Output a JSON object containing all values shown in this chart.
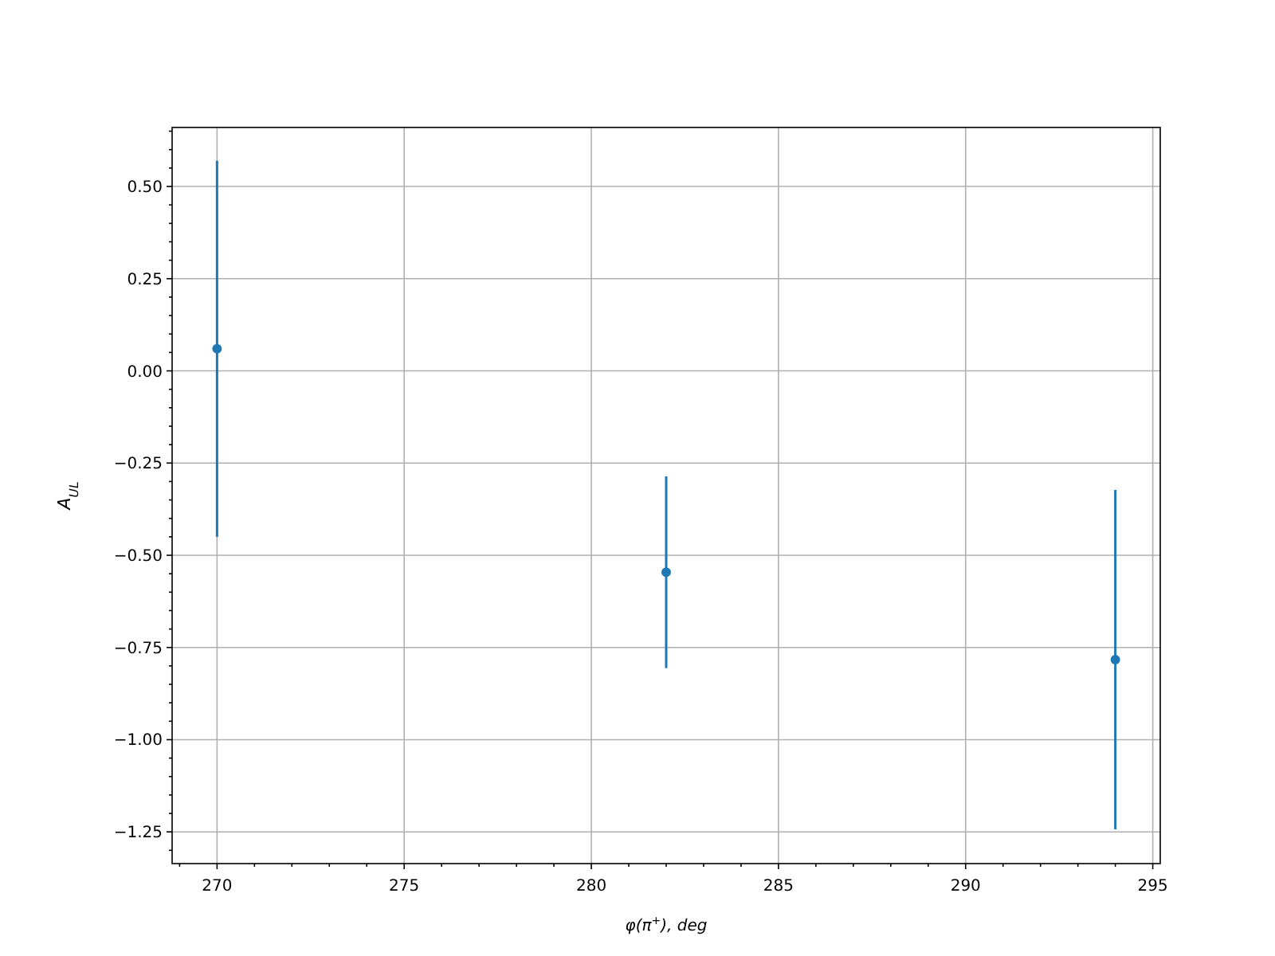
{
  "chart_data": {
    "type": "scatter",
    "xlabel": "φ(π$^{+}$), deg",
    "ylabel": "A$_{UL}$",
    "x": [
      270,
      282,
      294
    ],
    "series": [
      {
        "color": "#1f77b4",
        "values": [
          0.06,
          -0.546,
          -0.783
        ],
        "errors": [
          0.51,
          0.26,
          0.46
        ]
      }
    ],
    "xlim": [
      268.8,
      295.2
    ],
    "ylim": [
      -1.336,
      0.66
    ],
    "xticks": [
      {
        "value": 269,
        "label": null
      },
      270,
      {
        "value": 271,
        "label": null
      },
      {
        "value": 272,
        "label": null
      },
      {
        "value": 273,
        "label": null
      },
      {
        "value": 274,
        "label": null
      },
      275,
      {
        "value": 276,
        "label": null
      },
      {
        "value": 277,
        "label": null
      },
      {
        "value": 278,
        "label": null
      },
      {
        "value": 279,
        "label": null
      },
      280,
      {
        "value": 281,
        "label": null
      },
      {
        "value": 282,
        "label": null
      },
      {
        "value": 283,
        "label": null
      },
      {
        "value": 284,
        "label": null
      },
      285,
      {
        "value": 286,
        "label": null
      },
      {
        "value": 287,
        "label": null
      },
      {
        "value": 288,
        "label": null
      },
      {
        "value": 289,
        "label": null
      },
      290,
      {
        "value": 291,
        "label": null
      },
      {
        "value": 292,
        "label": null
      },
      {
        "value": 293,
        "label": null
      },
      {
        "value": 294,
        "label": null
      },
      295
    ],
    "yticks": [
      {
        "value": -1.3,
        "label": null
      },
      {
        "value": -1.25,
        "label": "−1.25"
      },
      {
        "value": -1.2,
        "label": null
      },
      {
        "value": -1.15,
        "label": null
      },
      {
        "value": -1.1,
        "label": null
      },
      {
        "value": -1.05,
        "label": null
      },
      {
        "value": -1,
        "label": "−1.00"
      },
      {
        "value": -0.95,
        "label": null
      },
      {
        "value": -0.9,
        "label": null
      },
      {
        "value": -0.85,
        "label": null
      },
      {
        "value": -0.8,
        "label": null
      },
      {
        "value": -0.75,
        "label": "−0.75"
      },
      {
        "value": -0.7,
        "label": null
      },
      {
        "value": -0.65,
        "label": null
      },
      {
        "value": -0.6,
        "label": null
      },
      {
        "value": -0.55,
        "label": null
      },
      {
        "value": -0.5,
        "label": "−0.50"
      },
      {
        "value": -0.45,
        "label": null
      },
      {
        "value": -0.4,
        "label": null
      },
      {
        "value": -0.35,
        "label": null
      },
      {
        "value": -0.3,
        "label": null
      },
      {
        "value": -0.25,
        "label": "−0.25"
      },
      {
        "value": -0.2,
        "label": null
      },
      {
        "value": -0.15,
        "label": null
      },
      {
        "value": -0.1,
        "label": null
      },
      {
        "value": -0.05,
        "label": null
      },
      {
        "value": 0,
        "label": "0.00"
      },
      {
        "value": 0.05,
        "label": null
      },
      {
        "value": 0.1,
        "label": null
      },
      {
        "value": 0.15,
        "label": null
      },
      {
        "value": 0.2,
        "label": null
      },
      {
        "value": 0.25,
        "label": "0.25"
      },
      {
        "value": 0.3,
        "label": null
      },
      {
        "value": 0.35,
        "label": null
      },
      {
        "value": 0.4,
        "label": null
      },
      {
        "value": 0.45,
        "label": null
      },
      {
        "value": 0.5,
        "label": "0.50"
      },
      {
        "value": 0.55,
        "label": null
      },
      {
        "value": 0.6,
        "label": null
      },
      {
        "value": 0.65,
        "label": null
      }
    ],
    "grid": true,
    "marker": "circle"
  }
}
